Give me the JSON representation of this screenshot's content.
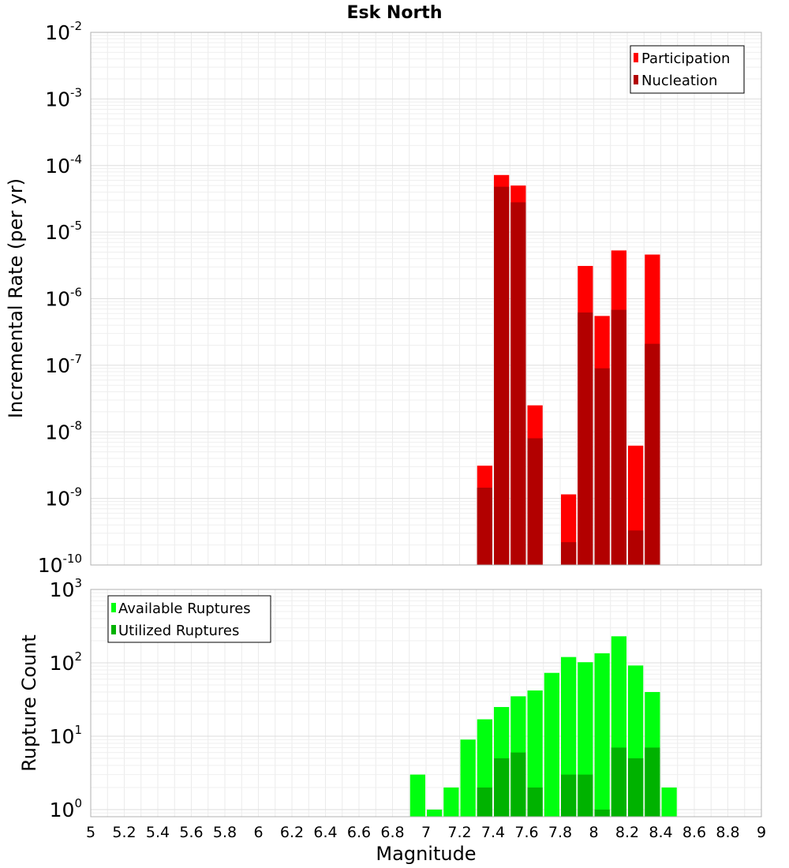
{
  "chart_data": [
    {
      "type": "bar",
      "title": "Esk North",
      "xlabel": "Magnitude",
      "ylabel": "Incremental Rate (per yr)",
      "yscale": "log",
      "ylim": [
        1e-10,
        0.01
      ],
      "xlim": [
        5,
        9
      ],
      "grid": true,
      "legend_position": "top-right",
      "series": [
        {
          "name": "Participation",
          "color": "#ff0000",
          "x": [
            7.35,
            7.45,
            7.55,
            7.65,
            7.85,
            7.95,
            8.05,
            8.15,
            8.25,
            8.35
          ],
          "values": [
            3.1e-09,
            7.2e-05,
            5e-05,
            2.5e-08,
            1.15e-09,
            3.1e-06,
            5.5e-07,
            5.3e-06,
            6.2e-09,
            4.6e-06
          ]
        },
        {
          "name": "Nucleation",
          "color": "#b20000",
          "x": [
            7.35,
            7.45,
            7.55,
            7.65,
            7.85,
            7.95,
            8.05,
            8.15,
            8.25,
            8.35
          ],
          "values": [
            1.45e-09,
            4.8e-05,
            2.8e-05,
            8e-09,
            2.2e-10,
            6.2e-07,
            9e-08,
            6.8e-07,
            3.3e-10,
            2.1e-07
          ]
        }
      ],
      "yticks": [
        {
          "base": "10",
          "exp": "-10",
          "value": 1e-10
        },
        {
          "base": "10",
          "exp": "-9",
          "value": 1e-09
        },
        {
          "base": "10",
          "exp": "-8",
          "value": 1e-08
        },
        {
          "base": "10",
          "exp": "-7",
          "value": 1e-07
        },
        {
          "base": "10",
          "exp": "-6",
          "value": 1e-06
        },
        {
          "base": "10",
          "exp": "-5",
          "value": 1e-05
        },
        {
          "base": "10",
          "exp": "-4",
          "value": 0.0001
        },
        {
          "base": "10",
          "exp": "-3",
          "value": 0.001
        },
        {
          "base": "10",
          "exp": "-2",
          "value": 0.01
        }
      ]
    },
    {
      "type": "bar",
      "title": "",
      "xlabel": "Magnitude",
      "ylabel": "Rupture Count",
      "yscale": "log",
      "ylim": [
        0.8,
        1000
      ],
      "xlim": [
        5,
        9
      ],
      "grid": true,
      "legend_position": "top-left",
      "series": [
        {
          "name": "Available Ruptures",
          "color": "#00ff0f",
          "x": [
            6.95,
            7.05,
            7.15,
            7.25,
            7.35,
            7.45,
            7.55,
            7.65,
            7.75,
            7.85,
            7.95,
            8.05,
            8.15,
            8.25,
            8.35,
            8.45
          ],
          "values": [
            3,
            1,
            2,
            9,
            17,
            25,
            35,
            42,
            73,
            120,
            102,
            135,
            230,
            92,
            40,
            2
          ]
        },
        {
          "name": "Utilized Ruptures",
          "color": "#00b200",
          "x": [
            7.35,
            7.45,
            7.55,
            7.65,
            7.85,
            7.95,
            8.05,
            8.15,
            8.25,
            8.35
          ],
          "values": [
            2,
            5,
            6,
            2,
            3,
            3,
            1,
            7,
            5,
            7
          ]
        }
      ],
      "yticks": [
        {
          "base": "10",
          "exp": "0",
          "value": 1
        },
        {
          "base": "10",
          "exp": "1",
          "value": 10
        },
        {
          "base": "10",
          "exp": "2",
          "value": 100
        },
        {
          "base": "10",
          "exp": "3",
          "value": 1000
        }
      ]
    }
  ],
  "x_ticks": [
    "5",
    "5.2",
    "5.4",
    "5.6",
    "5.8",
    "6",
    "6.2",
    "6.4",
    "6.6",
    "6.8",
    "7",
    "7.2",
    "7.4",
    "7.6",
    "7.8",
    "8",
    "8.2",
    "8.4",
    "8.6",
    "8.8",
    "9"
  ]
}
